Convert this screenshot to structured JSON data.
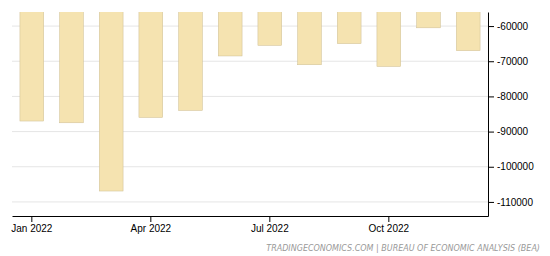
{
  "chart_data": {
    "type": "bar",
    "categories": [
      "Jan 2022",
      null,
      null,
      "Apr 2022",
      null,
      null,
      "Jul 2022",
      null,
      null,
      "Oct 2022",
      null,
      null
    ],
    "values": [
      -87000,
      -87500,
      -106900,
      -86000,
      -84000,
      -68500,
      -65500,
      -71000,
      -65000,
      -71500,
      -60500,
      -67000
    ],
    "color": "#f5e3b0",
    "ylim": [
      -114000,
      -56000
    ],
    "yticks": [
      -60000,
      -70000,
      -80000,
      -90000,
      -100000,
      -110000
    ],
    "grid": true,
    "annotations": [
      "TRADINGECONOMICS.COM | BUREAU OF ECONOMIC ANALYSIS (BEA)"
    ]
  }
}
